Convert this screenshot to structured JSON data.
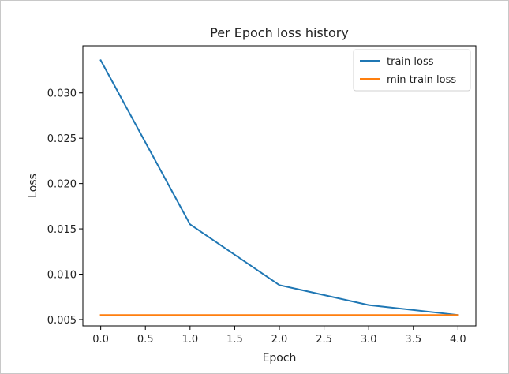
{
  "chart_data": {
    "type": "line",
    "title": "Per Epoch loss history",
    "xlabel": "Epoch",
    "ylabel": "Loss",
    "xlim": [
      -0.2,
      4.2
    ],
    "ylim": [
      0.0043,
      0.0352
    ],
    "x_ticks": [
      0.0,
      0.5,
      1.0,
      1.5,
      2.0,
      2.5,
      3.0,
      3.5,
      4.0
    ],
    "x_tick_labels": [
      "0.0",
      "0.5",
      "1.0",
      "1.5",
      "2.0",
      "2.5",
      "3.0",
      "3.5",
      "4.0"
    ],
    "y_ticks": [
      0.005,
      0.01,
      0.015,
      0.02,
      0.025,
      0.03
    ],
    "y_tick_labels": [
      "0.005",
      "0.010",
      "0.015",
      "0.020",
      "0.025",
      "0.030"
    ],
    "grid": false,
    "legend_position": "top-right",
    "series": [
      {
        "name": "train loss",
        "color": "#1f77b4",
        "x": [
          0,
          1,
          2,
          3,
          4
        ],
        "y": [
          0.0336,
          0.0155,
          0.0088,
          0.0066,
          0.0055
        ]
      },
      {
        "name": "min train loss",
        "color": "#ff7f0e",
        "x": [
          0,
          4
        ],
        "y": [
          0.0055,
          0.0055
        ]
      }
    ]
  }
}
